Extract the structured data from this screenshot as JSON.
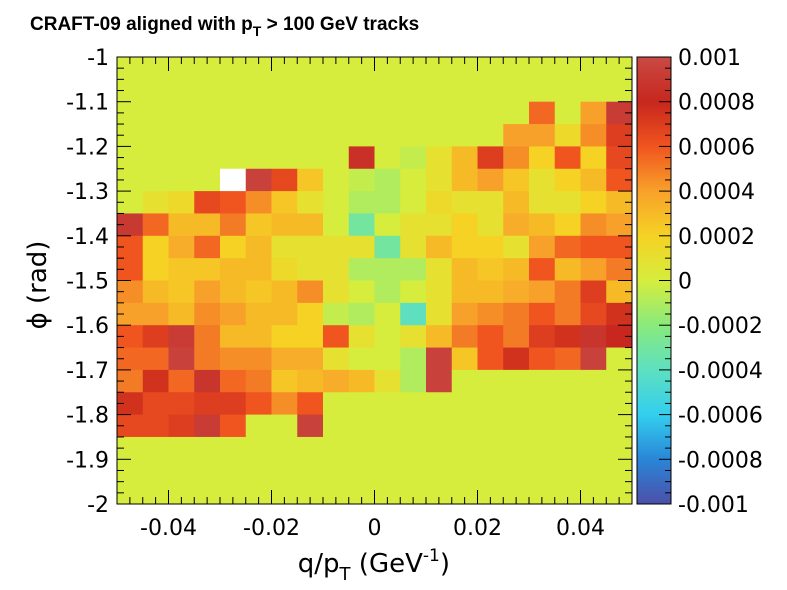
{
  "chart_data": {
    "type": "heatmap",
    "title": "CRAFT-09 aligned with p_T > 100 GeV tracks",
    "title_parts": {
      "text": "CRAFT-09 aligned with p",
      "sub": "T",
      "rest": " > 100 GeV tracks"
    },
    "xlabel": "q/p_T (GeV^-1)",
    "xlabel_parts": {
      "pre": "q/p",
      "sub": "T",
      "mid": " (GeV",
      "sup": "-1",
      "post": ")"
    },
    "ylabel": "ϕ (rad)",
    "xlim": [
      -0.05,
      0.05
    ],
    "ylim": [
      -2,
      -1
    ],
    "zlim": [
      -0.001,
      0.001
    ],
    "x_ticks": [
      "-0.04",
      "-0.02",
      "0",
      "0.02",
      "0.04"
    ],
    "x_tick_values": [
      -0.04,
      -0.02,
      0,
      0.02,
      0.04
    ],
    "y_ticks": [
      "-1",
      "-1.1",
      "-1.2",
      "-1.3",
      "-1.4",
      "-1.5",
      "-1.6",
      "-1.7",
      "-1.8",
      "-1.9",
      "-2"
    ],
    "y_tick_values": [
      -1,
      -1.1,
      -1.2,
      -1.3,
      -1.4,
      -1.5,
      -1.6,
      -1.7,
      -1.8,
      -1.9,
      -2
    ],
    "z_ticks": [
      "0.001",
      "0.0008",
      "0.0006",
      "0.0004",
      "0.0002",
      "0",
      "-0.0002",
      "-0.0004",
      "-0.0006",
      "-0.0008",
      "-0.001"
    ],
    "z_tick_values": [
      0.001,
      0.0008,
      0.0006,
      0.0004,
      0.0002,
      0,
      -0.0002,
      -0.0004,
      -0.0006,
      -0.0008,
      -0.001
    ],
    "nx": 20,
    "ny": 20,
    "grid": false,
    "colorbar": "right",
    "colors": {
      "scale": [
        "#4b4fa8",
        "#2a86d8",
        "#33cfee",
        "#5ee0c0",
        "#89ea7c",
        "#d6ed3d",
        "#f5d224",
        "#f8a12a",
        "#f0541f",
        "#c7271e",
        "#c94a44"
      ],
      "low_value_white": "#ffffff"
    },
    "rows_top_to_bottom": [
      [
        0,
        0,
        0,
        0,
        0,
        0,
        0,
        0,
        0,
        0,
        0,
        0,
        0,
        0,
        0,
        0,
        0,
        0,
        0,
        0
      ],
      [
        0,
        0,
        0,
        0,
        0,
        0,
        0,
        0,
        0,
        0,
        0,
        0,
        0,
        0,
        0,
        0,
        0,
        0,
        0,
        0
      ],
      [
        0,
        0,
        0,
        0,
        0,
        0,
        0,
        0,
        0,
        0,
        0,
        0,
        0,
        0,
        0,
        0,
        0.00055,
        0,
        0.0004,
        0.00092
      ],
      [
        0,
        0,
        0,
        0,
        0,
        0,
        0,
        0,
        0,
        0,
        0,
        0,
        0,
        0,
        0,
        0.0004,
        0.0004,
        0.00015,
        0.00045,
        0.0007
      ],
      [
        0,
        0,
        0,
        0,
        0,
        0,
        0,
        0,
        0,
        0.00085,
        0,
        -5e-05,
        0.0001,
        0.0003,
        0.0007,
        0.00045,
        0.0002,
        0.0006,
        0.0002,
        0.00065
      ],
      [
        0,
        0,
        0,
        0,
        -0.0015,
        0.00095,
        0.00065,
        0.00025,
        0,
        -5e-05,
        -0.0001,
        0,
        0.0001,
        0.0003,
        0.0004,
        0.00025,
        0.0001,
        0.0002,
        0.0003,
        0.0006
      ],
      [
        0,
        0.0001,
        0.00015,
        0.00065,
        0.0006,
        0.00045,
        0.00025,
        0.0001,
        0,
        -0.0001,
        -0.0001,
        0,
        0.00015,
        0.0001,
        0.0001,
        0.0003,
        0.0001,
        0.0001,
        0.0002,
        0.0003
      ],
      [
        0.0009,
        0.00055,
        0.0003,
        0.0003,
        0.0005,
        0.00025,
        0.0003,
        0.0003,
        0,
        -0.0003,
        0,
        0.0001,
        0.0001,
        0.0002,
        0.0001,
        0.00035,
        0.0003,
        0.0002,
        0.00045,
        0.0004
      ],
      [
        0.0006,
        0.0002,
        0.00035,
        0.00055,
        0.0002,
        0.0003,
        0.0001,
        0.0001,
        0.0001,
        0.0001,
        -0.0003,
        0.0001,
        0.0003,
        0.0002,
        0.0002,
        0.0001,
        0.0004,
        0.00055,
        0.0006,
        0.0006
      ],
      [
        0.0006,
        0.0002,
        0.00025,
        0.00025,
        0.0003,
        0.0003,
        0.00015,
        0.0001,
        0.0001,
        -0.0001,
        -0.0001,
        -0.0001,
        0.0001,
        0.0003,
        0.00025,
        0.0003,
        0.0006,
        0.0003,
        0.0004,
        0.0005
      ],
      [
        0.00045,
        0.0003,
        0.00025,
        0.0004,
        0.0003,
        0.00025,
        0.0003,
        0.00045,
        0.0001,
        0,
        -0.0001,
        0,
        0.0001,
        0.0003,
        0.0003,
        0.00035,
        0.0004,
        0.0005,
        0.0007,
        0.0003
      ],
      [
        0.0004,
        0.0004,
        0.0003,
        0.00045,
        0.0004,
        0.0003,
        0.0003,
        0.0002,
        -5e-05,
        -0.0001,
        0,
        -0.0004,
        0.0001,
        0.0004,
        0.00045,
        0.0005,
        0.0006,
        0.0005,
        0.00065,
        0.00075
      ],
      [
        0.0006,
        0.0007,
        0.00092,
        0.0005,
        0.0003,
        0.0003,
        0.0002,
        0.0002,
        0.0006,
        0.0001,
        0,
        0.0001,
        0.0003,
        0.0005,
        0.0006,
        0.0005,
        0.0007,
        0.00075,
        0.00088,
        0.0008
      ],
      [
        0.00055,
        0.00055,
        0.00095,
        0.0005,
        0.00045,
        0.00045,
        0.00035,
        0.00035,
        0.0001,
        0,
        0,
        -0.0001,
        0.00095,
        0.00025,
        0.0006,
        0.00075,
        0.0006,
        0.00055,
        0.00095,
        0
      ],
      [
        0.0005,
        0.00075,
        0.00055,
        0.00088,
        0.00055,
        0.0005,
        0.00025,
        0.0003,
        0.00035,
        0.0003,
        0.0001,
        -0.0001,
        0.00095,
        0,
        0,
        0,
        0,
        0,
        0,
        0
      ],
      [
        0.00075,
        0.00065,
        0.00065,
        0.0007,
        0.0007,
        0.0006,
        0.00045,
        0.0006,
        0,
        0,
        0,
        0,
        0,
        0,
        0,
        0,
        0,
        0,
        0,
        0
      ],
      [
        0.00065,
        0.00065,
        0.0007,
        0.00092,
        0.0006,
        0,
        0,
        0.00095,
        0,
        0,
        0,
        0,
        0,
        0,
        0,
        0,
        0,
        0,
        0,
        0
      ],
      [
        0,
        0,
        0,
        0,
        0,
        0,
        0,
        0,
        0,
        0,
        0,
        0,
        0,
        0,
        0,
        0,
        0,
        0,
        0,
        0
      ],
      [
        0,
        0,
        0,
        0,
        0,
        0,
        0,
        0,
        0,
        0,
        0,
        0,
        0,
        0,
        0,
        0,
        0,
        0,
        0,
        0
      ],
      [
        0,
        0,
        0,
        0,
        0,
        0,
        0,
        0,
        0,
        0,
        0,
        0,
        0,
        0,
        0,
        0,
        0,
        0,
        0,
        0
      ]
    ]
  }
}
